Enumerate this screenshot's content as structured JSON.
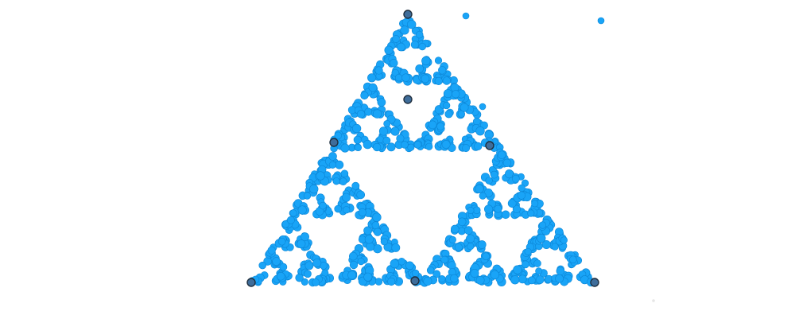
{
  "figure": {
    "kind": "chaos-game-sierpinski",
    "shape": "triangle",
    "recursion_depth_visible": 3,
    "point_count_approx": 900,
    "colors": {
      "point_fill": "#19a4f7",
      "point_stroke": "#0c86d6",
      "vertex_fill": "#3f6d9a",
      "vertex_stroke": "#1f2f3f",
      "background": "#ffffff"
    },
    "control_points": [
      {
        "name": "top-vertex"
      },
      {
        "name": "bottom-left-vertex"
      },
      {
        "name": "bottom-right-vertex"
      },
      {
        "name": "left-midpoint"
      },
      {
        "name": "right-midpoint"
      },
      {
        "name": "bottom-midpoint"
      },
      {
        "name": "center-point"
      }
    ],
    "stray_points": 3,
    "faint_marks": 1
  }
}
